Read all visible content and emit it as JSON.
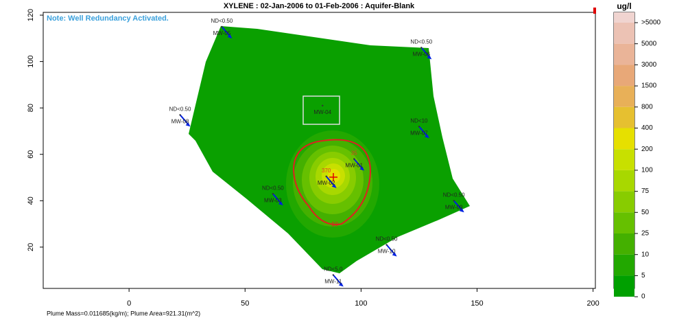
{
  "chart_data": {
    "type": "plume",
    "title": "XYLENE  : 02-Jan-2006 to 01-Feb-2006 : Aquifer-Blank",
    "note": "Note: Well Redundancy Activated.",
    "footer": "Plume Mass=0.011685(kg/m);  Plume Area=921.31(m^2)",
    "contour_label": "10",
    "xlim": [
      -37,
      201
    ],
    "ylim": [
      2.2,
      121.2
    ],
    "xticks": [
      0,
      50,
      100,
      150,
      200
    ],
    "yticks": [
      20,
      40,
      60,
      80,
      100,
      120
    ],
    "wells": [
      {
        "name": "MW-05",
        "result": "ND<0.50",
        "x": 40,
        "y": 115
      },
      {
        "name": "MW-06",
        "result": "ND<0.50",
        "x": 126,
        "y": 106
      },
      {
        "name": "MW-04",
        "x": 83.4,
        "y": 81
      },
      {
        "name": "MW-08",
        "result": "ND<0.50",
        "x": 22,
        "y": 77
      },
      {
        "name": "MW-07",
        "result": "ND<10",
        "x": 125,
        "y": 72
      },
      {
        "name": "MW-01",
        "result": 35,
        "x": 97,
        "y": 58
      },
      {
        "name": "MW-02",
        "result": 370,
        "x": 85,
        "y": 50.5
      },
      {
        "name": "MW-03",
        "result": "ND<0.50",
        "x": 62,
        "y": 43
      },
      {
        "name": "MW-09",
        "result": "ND<0.50",
        "x": 140,
        "y": 40
      },
      {
        "name": "MW-10",
        "result": "ND<0.50",
        "x": 111,
        "y": 21
      },
      {
        "name": "MW-11",
        "result": "ND<5.0",
        "x": 88,
        "y": 8
      }
    ],
    "legend": {
      "unit": "ug/l",
      "labels": [
        ">5000",
        5000,
        3000,
        1500,
        800,
        400,
        200,
        100,
        75,
        50,
        25,
        10,
        5,
        0
      ],
      "colors": [
        "#f0d4d0",
        "#ecc2b4",
        "#eab498",
        "#e8a878",
        "#e8b058",
        "#e6c030",
        "#e6e000",
        "#c8e000",
        "#a8d800",
        "#88cc00",
        "#66c000",
        "#44b000",
        "#22a800",
        "#00a000"
      ]
    }
  }
}
